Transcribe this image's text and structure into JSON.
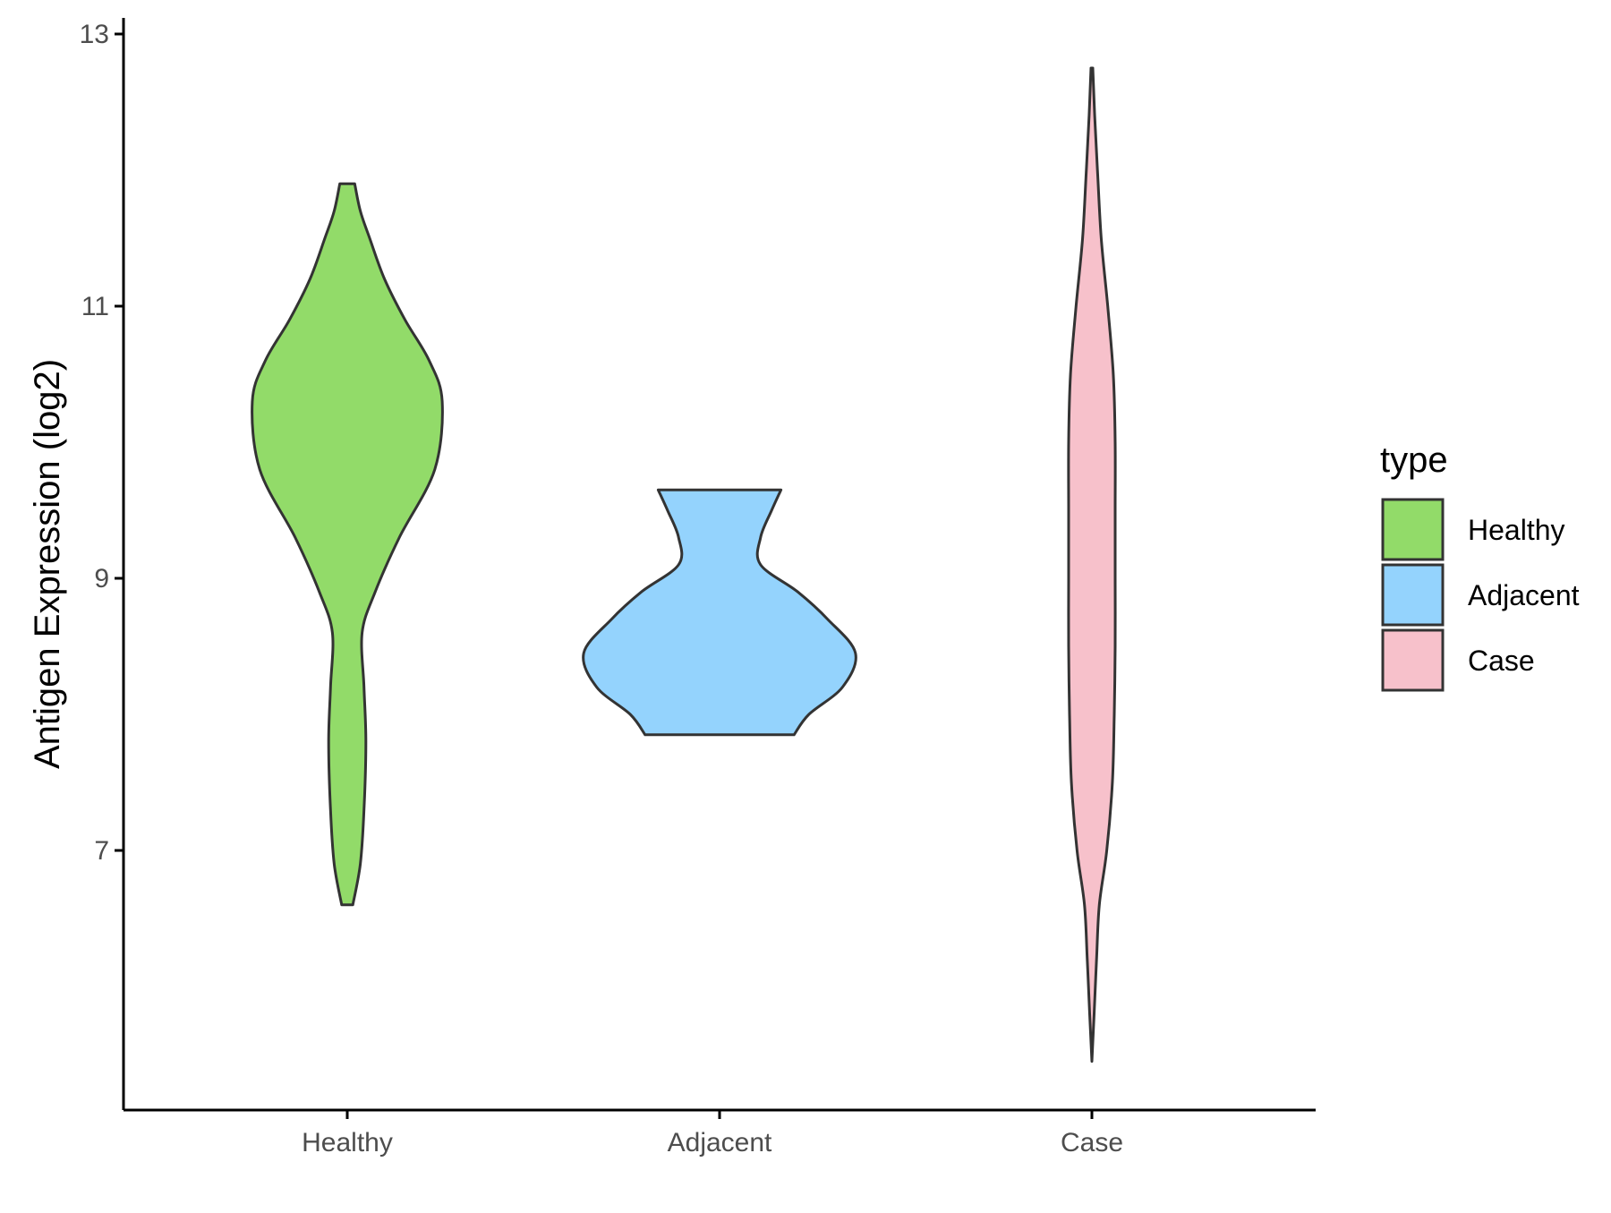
{
  "chart_data": {
    "type": "violin",
    "ylabel": "Antigen Expression (log2)",
    "xlabel": "",
    "ylim": [
      5.0,
      13.1
    ],
    "y_ticks": [
      7,
      9,
      11,
      13
    ],
    "categories": [
      "Healthy",
      "Adjacent",
      "Case"
    ],
    "legend": {
      "title": "type",
      "placement": "right",
      "items": [
        {
          "label": "Healthy",
          "color": "#92DB69"
        },
        {
          "label": "Adjacent",
          "color": "#94D3FD"
        },
        {
          "label": "Case",
          "color": "#F7C1CB"
        }
      ]
    },
    "series": [
      {
        "name": "Healthy",
        "color": "#92DB69",
        "min": 6.6,
        "max": 11.9,
        "profile": [
          [
            6.6,
            0.03
          ],
          [
            6.9,
            0.07
          ],
          [
            7.3,
            0.09
          ],
          [
            7.8,
            0.1
          ],
          [
            8.2,
            0.09
          ],
          [
            8.6,
            0.08
          ],
          [
            8.9,
            0.15
          ],
          [
            9.3,
            0.28
          ],
          [
            9.8,
            0.47
          ],
          [
            10.3,
            0.51
          ],
          [
            10.6,
            0.44
          ],
          [
            10.9,
            0.31
          ],
          [
            11.2,
            0.2
          ],
          [
            11.5,
            0.12
          ],
          [
            11.7,
            0.07
          ],
          [
            11.9,
            0.04
          ]
        ]
      },
      {
        "name": "Adjacent",
        "color": "#94D3FD",
        "min": 7.85,
        "max": 9.65,
        "profile": [
          [
            7.85,
            0.4
          ],
          [
            8.0,
            0.48
          ],
          [
            8.2,
            0.66
          ],
          [
            8.45,
            0.73
          ],
          [
            8.7,
            0.58
          ],
          [
            8.9,
            0.42
          ],
          [
            9.1,
            0.22
          ],
          [
            9.3,
            0.22
          ],
          [
            9.5,
            0.28
          ],
          [
            9.65,
            0.33
          ]
        ]
      },
      {
        "name": "Case",
        "color": "#F7C1CB",
        "min": 5.45,
        "max": 12.75,
        "profile": [
          [
            5.45,
            0.0
          ],
          [
            5.8,
            0.012
          ],
          [
            6.2,
            0.025
          ],
          [
            6.6,
            0.04
          ],
          [
            7.0,
            0.08
          ],
          [
            7.5,
            0.11
          ],
          [
            8.0,
            0.12
          ],
          [
            8.5,
            0.125
          ],
          [
            9.0,
            0.125
          ],
          [
            9.5,
            0.125
          ],
          [
            10.0,
            0.125
          ],
          [
            10.5,
            0.115
          ],
          [
            11.0,
            0.085
          ],
          [
            11.5,
            0.05
          ],
          [
            12.0,
            0.03
          ],
          [
            12.4,
            0.015
          ],
          [
            12.75,
            0.005
          ]
        ]
      }
    ]
  }
}
